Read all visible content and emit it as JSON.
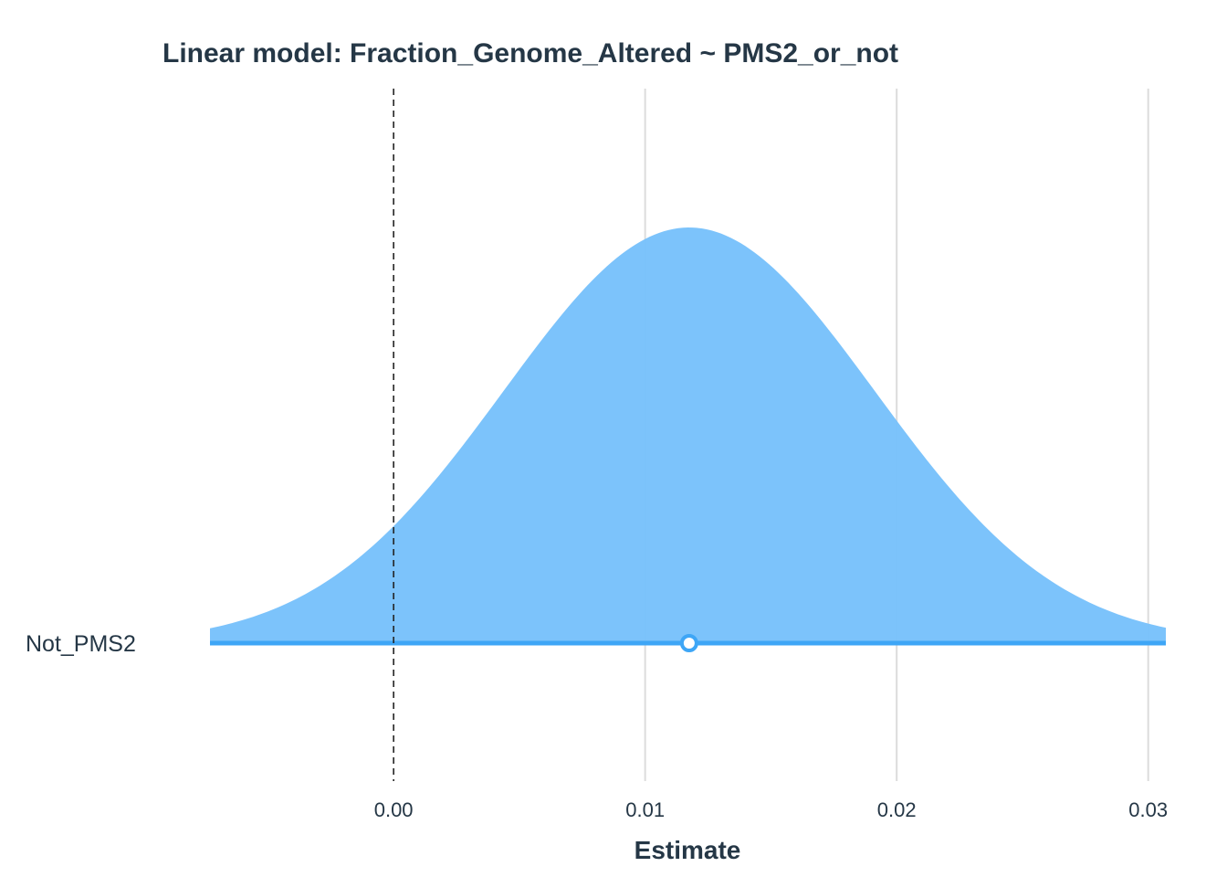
{
  "chart_data": {
    "type": "area",
    "title": "Linear model: Fraction_Genome_Altered ~ PMS2_or_not",
    "xlabel": "Estimate",
    "ylabel": "",
    "xlim": [
      -0.0073,
      0.0307
    ],
    "x_ticks": [
      0.0,
      0.01,
      0.02,
      0.03
    ],
    "x_tick_labels": [
      "0.00",
      "0.01",
      "0.02",
      "0.03"
    ],
    "grid": true,
    "reference_line": {
      "x": 0.0,
      "style": "dashed"
    },
    "categories": [
      "Not_PMS2"
    ],
    "series": [
      {
        "category": "Not_PMS2",
        "estimate": 0.01175,
        "ci_low": -0.0073,
        "ci_high": 0.0307,
        "distribution": "normal",
        "sd": 0.00738
      }
    ],
    "colors": {
      "fill": "#78c1fb",
      "line": "#3ea6f6",
      "point_fill": "#ffffff",
      "reference_line": "#222222",
      "grid": "#dcdcdc",
      "text": "#253746"
    }
  }
}
